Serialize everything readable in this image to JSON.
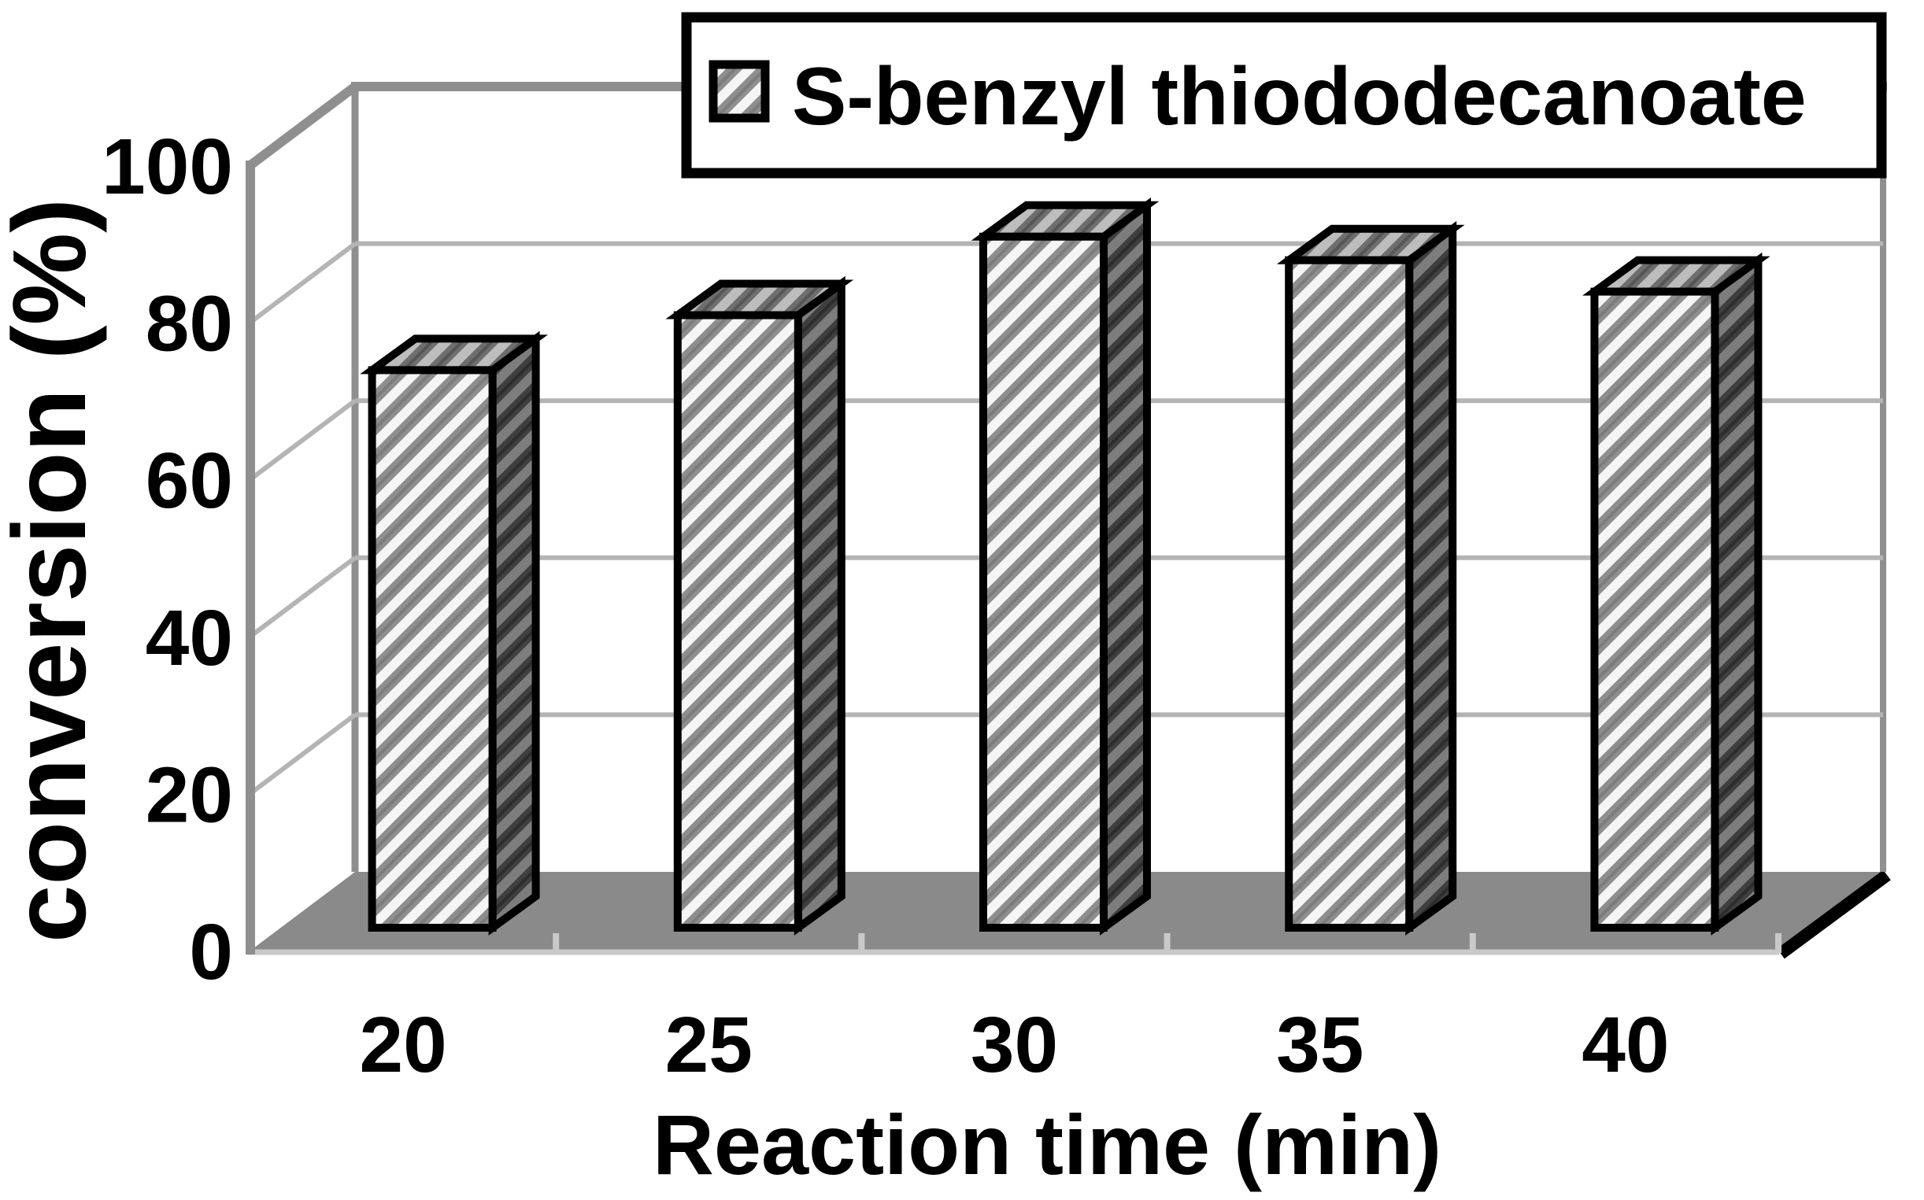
{
  "chart_data": {
    "type": "bar",
    "projection": "3d",
    "title": "",
    "xlabel": "Reaction time (min)",
    "ylabel": "conversion (%)",
    "categories": [
      "20",
      "25",
      "30",
      "35",
      "40"
    ],
    "series": [
      {
        "name": "S-benzyl thiododecanoate",
        "values": [
          71,
          78,
          88,
          85,
          81
        ]
      }
    ],
    "ylim": [
      0,
      100
    ],
    "yticks": [
      "0",
      "20",
      "40",
      "60",
      "80",
      "100"
    ],
    "grid": "horizontal-backwall",
    "legend_position": "top",
    "legend_entries": [
      "S-benzyl thiododecanoate"
    ]
  },
  "colors": {
    "floor": "#8a8a8a",
    "frame": "#8f8f8f",
    "gridline": "#b4b4b4",
    "floor_edge_light": "#c9c9c9",
    "floor_edge_shadow": "#000000",
    "bar_outline": "#000000",
    "text": "#000000",
    "legend_background": "#ffffff",
    "legend_border": "#000000"
  }
}
